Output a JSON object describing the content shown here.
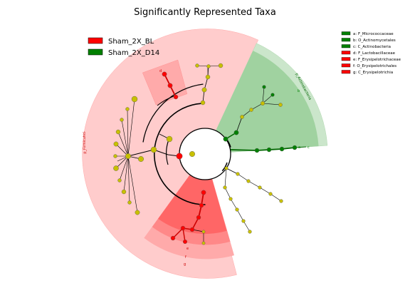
{
  "chart_data": {
    "type": "cladogram",
    "title": "Significantly Represented Taxa",
    "legend": [
      {
        "name": "Sham_2X_BL",
        "color": "#ff0000"
      },
      {
        "name": "Sham_2X_D14",
        "color": "#008000"
      }
    ],
    "clade_key": [
      {
        "text": "a: F_Micrococcaceae",
        "color": "#008000"
      },
      {
        "text": "b: O_Actinomycetales",
        "color": "#008000"
      },
      {
        "text": "c: C_Actinobacteria",
        "color": "#008000"
      },
      {
        "text": "d: F_Lactobacillaceae",
        "color": "#ff0000"
      },
      {
        "text": "e: F_Erysipelotrichaceae",
        "color": "#ff0000"
      },
      {
        "text": "f: O_Erysipelotrichales",
        "color": "#ff0000"
      },
      {
        "text": "g: C_Erysipelotrichia",
        "color": "#ff0000"
      }
    ],
    "phylum_labels": [
      {
        "text": "p_Firmicutes",
        "color": "#ff0000"
      },
      {
        "text": "p_Actinobacteria",
        "color": "#008000"
      }
    ],
    "small_labels": [
      "a",
      "b",
      "c",
      "d",
      "e",
      "f",
      "g"
    ],
    "colors": {
      "enriched_bl": "#ff0000",
      "enriched_d14": "#008000",
      "non_significant": "#c8c000"
    }
  }
}
